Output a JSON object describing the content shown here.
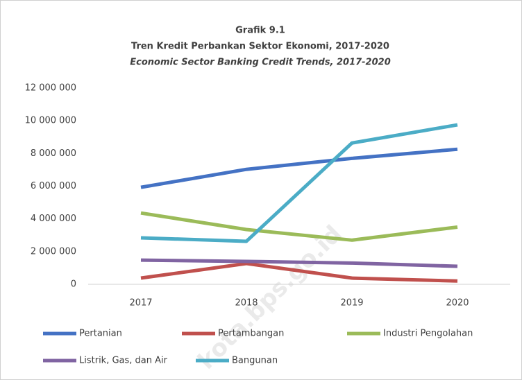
{
  "chart_data": {
    "type": "line",
    "title": "Grafik 9.1",
    "subtitle": "Tren Kredit Perbankan Sektor Ekonomi, 2017-2020",
    "subtitle_en": "Economic Sector Banking Credit Trends, 2017-2020",
    "watermark": "kota.bps.go.id",
    "categories": [
      "2017",
      "2018",
      "2019",
      "2020"
    ],
    "series": [
      {
        "name": "Pertanian",
        "color": "#4472c4",
        "values": [
          5930000,
          7030000,
          7700000,
          8260000
        ]
      },
      {
        "name": "Pertambangan",
        "color": "#c0504d",
        "values": [
          380000,
          1270000,
          380000,
          200000
        ]
      },
      {
        "name": "Industri Pengolahan",
        "color": "#9bbb59",
        "values": [
          4360000,
          3350000,
          2700000,
          3500000
        ]
      },
      {
        "name": "Listrik, Gas, dan Air",
        "color": "#8064a2",
        "values": [
          1480000,
          1400000,
          1300000,
          1100000
        ]
      },
      {
        "name": "Bangunan",
        "color": "#4bacc6",
        "values": [
          2840000,
          2630000,
          8640000,
          9750000
        ]
      }
    ],
    "ylim": [
      0,
      12000000
    ],
    "yticks": [
      0,
      {
        "value": 2000000,
        "label": "2 000 000"
      },
      {
        "value": 4000000,
        "label": "4 000 000"
      },
      {
        "value": 6000000,
        "label": "6 000 000"
      },
      {
        "value": 8000000,
        "label": "8 000 000"
      },
      {
        "value": 10000000,
        "label": "10 000 000"
      },
      {
        "value": 12000000,
        "label": "12 000 000"
      }
    ],
    "grid": false,
    "legend": "bottom"
  }
}
